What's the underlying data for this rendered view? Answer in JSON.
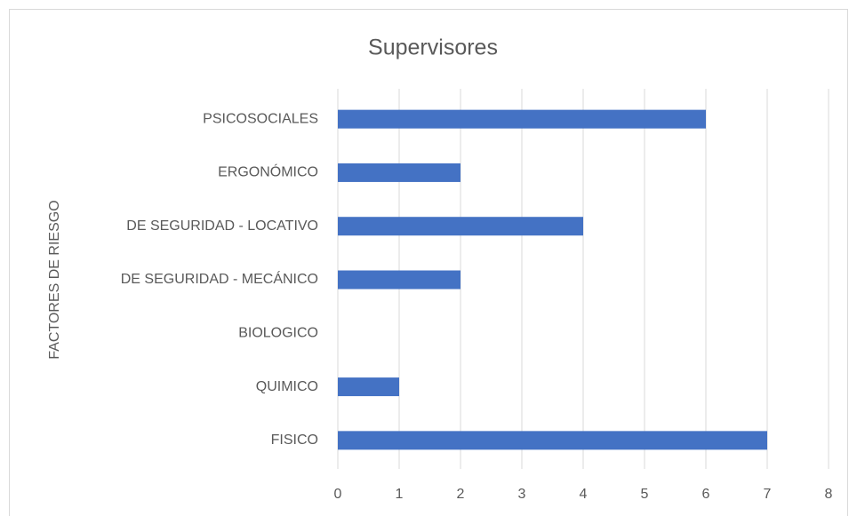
{
  "chart_data": {
    "type": "bar",
    "orientation": "horizontal",
    "title": "Supervisores",
    "y_label": "FACTORES DE RIESGO",
    "categories": [
      "PSICOSOCIALES",
      "ERGONÓMICO",
      "DE SEGURIDAD - LOCATIVO",
      "DE SEGURIDAD - MECÁNICO",
      "BIOLOGICO",
      "QUIMICO",
      "FISICO"
    ],
    "values": [
      6,
      2,
      4,
      2,
      0,
      1,
      7
    ],
    "color": "#4472c4",
    "xlim": [
      0,
      8
    ],
    "xticks": [
      0,
      1,
      2,
      3,
      4,
      5,
      6,
      7,
      8
    ],
    "grid": true
  }
}
